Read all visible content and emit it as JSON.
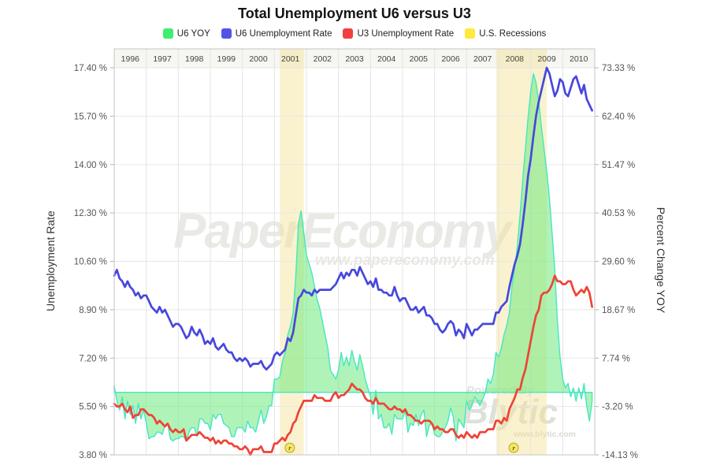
{
  "title": "Total Unemployment U6 versus U3",
  "legend": {
    "items": [
      {
        "label": "U6 YOY",
        "color": "#3fee6e"
      },
      {
        "label": "U6 Unemployment Rate",
        "color": "#5353e8"
      },
      {
        "label": "U3 Unemployment Rate",
        "color": "#f24040"
      },
      {
        "label": "U.S. Recessions",
        "color": "#ffe93c"
      }
    ]
  },
  "watermarks": {
    "brand": "PaperEconomy",
    "brand_url": "www.papereconomy.com",
    "powered_by": "Powered By",
    "engine": "Blytic",
    "engine_url": "www.blytic.com"
  },
  "chart_data": {
    "type": "line",
    "x_start": 1996,
    "x_end": 2011,
    "x_step_months": 1,
    "years": [
      "1996",
      "1997",
      "1998",
      "1999",
      "2000",
      "2001",
      "2002",
      "2003",
      "2004",
      "2005",
      "2006",
      "2007",
      "2008",
      "2009",
      "2010"
    ],
    "left_axis": {
      "title": "Unemployment Rate",
      "min": 3.8,
      "max": 17.4,
      "tick_labels": [
        "17.40 %",
        "15.70 %",
        "14.00 %",
        "12.30 %",
        "10.60 %",
        "8.90 %",
        "7.20 %",
        "5.50 %",
        "3.80 %"
      ]
    },
    "right_axis": {
      "title": "Percent Change YOY",
      "min": -14.13,
      "max": 73.33,
      "tick_labels": [
        "73.33 %",
        "62.40 %",
        "51.47 %",
        "40.53 %",
        "29.60 %",
        "18.67 %",
        "7.74 %",
        "-3.20 %",
        "-14.13 %"
      ]
    },
    "grid": true,
    "legend_position": "top",
    "recession_color": "rgba(243,226,148,0.45)",
    "recessions": [
      {
        "start": 2001.17,
        "end": 2001.92
      },
      {
        "start": 2007.92,
        "end": 2009.5
      }
    ],
    "recession_markers": [
      {
        "x": 2001.48,
        "label": "r"
      },
      {
        "x": 2008.47,
        "label": "r"
      }
    ],
    "series": [
      {
        "name": "U6 YOY",
        "axis": "right",
        "style": "area",
        "fill": "rgba(112,234,125,0.55)",
        "line": "#45e6c3",
        "values": [
          1.5,
          -2,
          -4,
          -1,
          -6,
          -2,
          -5,
          -3,
          -7,
          -2.5,
          -6,
          -4,
          -7,
          -10.5,
          -10,
          -10,
          -9,
          -9,
          -9.5,
          -7.5,
          -7,
          -10.5,
          -11,
          -10.5,
          -10.5,
          -10,
          -10,
          -11,
          -9,
          -8,
          -8,
          -10,
          -6,
          -6,
          -7,
          -7,
          -8.5,
          -5,
          -6,
          -5,
          -5,
          -7,
          -7.5,
          -8,
          -10,
          -10,
          -8,
          -8,
          -8,
          -9,
          -6.5,
          -8,
          -8,
          -9,
          -6.5,
          -4,
          -7,
          -5.5,
          -3,
          -3,
          3,
          3,
          3.5,
          7,
          9,
          13,
          15,
          18,
          26,
          38,
          41,
          36,
          31,
          29,
          27,
          24,
          21,
          19,
          16,
          13,
          10,
          5,
          4,
          3,
          5,
          9,
          6,
          8,
          6,
          9.5,
          7,
          5,
          8.5,
          6,
          3,
          1,
          -1,
          -5,
          0.5,
          -6,
          -5,
          -8,
          -8,
          -7,
          -9.5,
          -5,
          -6,
          -6,
          -6,
          -4,
          -9,
          -7,
          -7.5,
          -5,
          -7.5,
          -5,
          -4,
          -10,
          -7.5,
          -7,
          -9.5,
          -10,
          -10,
          -9,
          -8,
          -6.5,
          -3.5,
          -5.5,
          -11,
          -6,
          -7,
          -8,
          -2,
          -4,
          -3,
          -1,
          -2,
          -3,
          -1.5,
          0,
          3,
          2,
          4,
          9,
          8,
          10,
          13,
          15,
          18,
          24,
          28,
          33,
          40,
          48,
          55,
          62,
          68,
          72,
          70,
          66,
          60,
          55,
          50,
          44,
          36,
          28,
          16,
          8,
          3,
          1,
          2,
          -1,
          1,
          -2,
          1,
          -1.5,
          2,
          -3,
          -6.5,
          -2
        ]
      },
      {
        "name": "U6 Unemployment Rate",
        "axis": "left",
        "style": "line",
        "color": "#4747dd",
        "values": [
          10.1,
          10.3,
          10.0,
          9.9,
          9.7,
          9.9,
          9.7,
          9.6,
          9.4,
          9.5,
          9.3,
          9.4,
          9.4,
          9.2,
          9.0,
          8.9,
          8.8,
          9.0,
          8.8,
          8.9,
          8.7,
          8.5,
          8.3,
          8.4,
          8.4,
          8.3,
          8.1,
          7.9,
          8.0,
          8.3,
          8.1,
          8.0,
          8.2,
          8.0,
          7.7,
          7.8,
          7.7,
          7.9,
          7.6,
          7.5,
          7.6,
          7.7,
          7.5,
          7.4,
          7.4,
          7.2,
          7.1,
          7.2,
          7.1,
          7.2,
          7.1,
          6.9,
          7.0,
          7.0,
          7.0,
          7.1,
          6.9,
          6.8,
          6.9,
          7.0,
          7.3,
          7.4,
          7.3,
          7.4,
          7.5,
          7.9,
          7.8,
          8.1,
          8.7,
          9.3,
          9.4,
          9.6,
          9.5,
          9.5,
          9.4,
          9.6,
          9.5,
          9.6,
          9.6,
          9.6,
          9.6,
          9.6,
          9.7,
          9.8,
          10.0,
          10.2,
          10.0,
          10.2,
          10.1,
          10.3,
          10.3,
          10.1,
          10.4,
          10.2,
          10.0,
          9.8,
          9.9,
          9.7,
          10.0,
          9.6,
          9.6,
          9.5,
          9.5,
          9.4,
          9.4,
          9.7,
          9.4,
          9.2,
          9.3,
          9.3,
          9.1,
          8.9,
          8.9,
          9.0,
          8.8,
          8.9,
          9.0,
          8.7,
          8.7,
          8.6,
          8.4,
          8.4,
          8.2,
          8.1,
          8.2,
          8.4,
          8.5,
          8.4,
          8.0,
          8.2,
          8.1,
          7.9,
          8.4,
          8.2,
          8.0,
          8.2,
          8.2,
          8.3,
          8.4,
          8.4,
          8.4,
          8.4,
          8.4,
          8.8,
          8.8,
          9.0,
          9.1,
          9.2,
          9.7,
          10.1,
          10.5,
          10.8,
          11.2,
          11.9,
          12.7,
          13.6,
          14.2,
          15.0,
          15.7,
          16.2,
          16.6,
          17.0,
          17.4,
          17.2,
          16.8,
          16.4,
          16.6,
          17.0,
          16.9,
          16.5,
          16.4,
          16.7,
          17.0,
          17.1,
          16.8,
          16.5,
          16.8,
          16.3,
          16.1,
          15.9
        ]
      },
      {
        "name": "U3 Unemployment Rate",
        "axis": "left",
        "style": "line",
        "color": "#ef4337",
        "values": [
          5.6,
          5.5,
          5.5,
          5.6,
          5.4,
          5.3,
          5.5,
          5.1,
          5.2,
          5.2,
          5.4,
          5.4,
          5.3,
          5.2,
          5.2,
          5.1,
          4.9,
          5.0,
          4.9,
          4.8,
          4.9,
          4.7,
          4.6,
          4.7,
          4.6,
          4.6,
          4.7,
          4.3,
          4.4,
          4.5,
          4.5,
          4.5,
          4.6,
          4.5,
          4.4,
          4.4,
          4.3,
          4.4,
          4.2,
          4.3,
          4.2,
          4.3,
          4.3,
          4.2,
          4.2,
          4.1,
          4.1,
          4.0,
          4.0,
          4.1,
          4.0,
          3.8,
          4.0,
          4.0,
          4.0,
          4.1,
          3.9,
          3.9,
          3.9,
          3.9,
          4.2,
          4.2,
          4.3,
          4.4,
          4.3,
          4.5,
          4.6,
          4.9,
          5.0,
          5.3,
          5.5,
          5.7,
          5.7,
          5.7,
          5.7,
          5.9,
          5.8,
          5.8,
          5.8,
          5.7,
          5.7,
          5.7,
          5.9,
          6.0,
          5.8,
          5.9,
          5.9,
          6.0,
          6.1,
          6.3,
          6.2,
          6.1,
          6.1,
          6.0,
          5.8,
          5.7,
          5.7,
          5.6,
          5.8,
          5.6,
          5.6,
          5.6,
          5.5,
          5.4,
          5.4,
          5.5,
          5.4,
          5.4,
          5.3,
          5.4,
          5.2,
          5.2,
          5.1,
          5.0,
          5.0,
          4.9,
          5.0,
          5.0,
          5.0,
          4.9,
          4.7,
          4.8,
          4.7,
          4.7,
          4.6,
          4.6,
          4.7,
          4.7,
          4.5,
          4.4,
          4.5,
          4.4,
          4.6,
          4.5,
          4.4,
          4.5,
          4.4,
          4.6,
          4.6,
          4.6,
          4.7,
          4.7,
          4.7,
          5.0,
          5.0,
          4.9,
          5.1,
          5.0,
          5.4,
          5.6,
          5.8,
          6.1,
          6.1,
          6.5,
          6.8,
          7.3,
          7.8,
          8.3,
          8.7,
          8.9,
          9.4,
          9.5,
          9.5,
          9.6,
          9.8,
          10.1,
          9.9,
          9.9,
          9.8,
          9.8,
          9.9,
          9.9,
          9.6,
          9.4,
          9.5,
          9.6,
          9.5,
          9.7,
          9.5,
          9.0
        ]
      }
    ]
  }
}
